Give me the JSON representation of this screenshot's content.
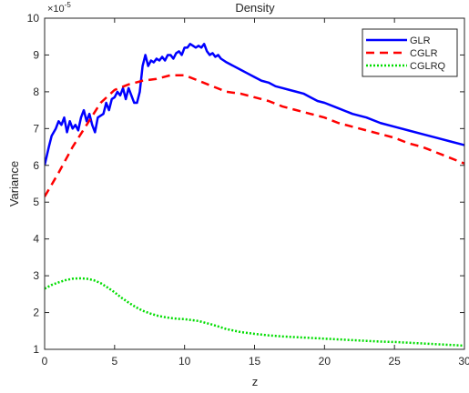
{
  "chart_data": {
    "type": "line",
    "title": "Density",
    "xlabel": "z",
    "ylabel": "Variance",
    "y_exponent_label": "×10",
    "y_exponent_power": "-5",
    "xlim": [
      0,
      30
    ],
    "ylim": [
      1,
      10
    ],
    "x_ticks": [
      0,
      5,
      10,
      15,
      20,
      25,
      30
    ],
    "x_tick_labels": [
      "0",
      "5",
      "10",
      "15",
      "20",
      "25",
      "30"
    ],
    "y_ticks": [
      1,
      2,
      3,
      4,
      5,
      6,
      7,
      8,
      9,
      10
    ],
    "y_tick_labels": [
      "1",
      "2",
      "3",
      "4",
      "5",
      "6",
      "7",
      "8",
      "9",
      "10"
    ],
    "grid": false,
    "legend_position": "top-right",
    "series": [
      {
        "name": "GLR",
        "color": "#0000ff",
        "style": "solid",
        "x": [
          0.0,
          0.3,
          0.5,
          0.8,
          1.0,
          1.2,
          1.4,
          1.6,
          1.8,
          2.0,
          2.2,
          2.4,
          2.6,
          2.8,
          3.0,
          3.2,
          3.4,
          3.6,
          3.8,
          4.0,
          4.2,
          4.4,
          4.6,
          4.8,
          5.0,
          5.2,
          5.4,
          5.6,
          5.8,
          6.0,
          6.2,
          6.4,
          6.6,
          6.8,
          7.0,
          7.2,
          7.4,
          7.6,
          7.8,
          8.0,
          8.2,
          8.4,
          8.6,
          8.8,
          9.0,
          9.2,
          9.4,
          9.6,
          9.8,
          10.0,
          10.2,
          10.4,
          10.6,
          10.8,
          11.0,
          11.2,
          11.4,
          11.6,
          11.8,
          12.0,
          12.2,
          12.4,
          12.6,
          12.8,
          13.0,
          13.5,
          14.0,
          14.5,
          15.0,
          15.5,
          16.0,
          16.5,
          17.0,
          17.5,
          18.0,
          18.5,
          19.0,
          19.5,
          20.0,
          21.0,
          22.0,
          23.0,
          24.0,
          25.0,
          26.0,
          27.0,
          28.0,
          29.0,
          30.0
        ],
        "values": [
          6.0,
          6.5,
          6.8,
          7.0,
          7.2,
          7.1,
          7.3,
          6.9,
          7.2,
          7.0,
          7.1,
          6.95,
          7.3,
          7.5,
          7.2,
          7.4,
          7.1,
          6.9,
          7.3,
          7.35,
          7.4,
          7.7,
          7.5,
          7.8,
          7.85,
          8.0,
          7.9,
          8.1,
          7.8,
          8.1,
          7.9,
          7.7,
          7.7,
          8.0,
          8.7,
          9.0,
          8.7,
          8.85,
          8.8,
          8.9,
          8.85,
          8.95,
          8.85,
          9.0,
          9.0,
          8.9,
          9.05,
          9.1,
          9.0,
          9.2,
          9.2,
          9.3,
          9.25,
          9.2,
          9.25,
          9.2,
          9.3,
          9.1,
          9.0,
          9.05,
          8.95,
          9.0,
          8.9,
          8.85,
          8.8,
          8.7,
          8.6,
          8.5,
          8.4,
          8.3,
          8.25,
          8.15,
          8.1,
          8.05,
          8.0,
          7.95,
          7.85,
          7.75,
          7.7,
          7.55,
          7.4,
          7.3,
          7.15,
          7.05,
          6.95,
          6.85,
          6.75,
          6.65,
          6.55
        ]
      },
      {
        "name": "CGLR",
        "color": "#ff0000",
        "style": "dashed",
        "x": [
          0,
          1,
          2,
          3,
          4,
          5,
          6,
          7,
          8,
          9,
          10,
          11,
          12,
          13,
          14,
          15,
          16,
          17,
          18,
          19,
          20,
          21,
          22,
          23,
          24,
          25,
          26,
          27,
          28,
          29,
          30
        ],
        "values": [
          5.15,
          5.8,
          6.5,
          7.1,
          7.7,
          8.05,
          8.2,
          8.3,
          8.35,
          8.45,
          8.45,
          8.3,
          8.15,
          8.0,
          7.95,
          7.85,
          7.75,
          7.6,
          7.5,
          7.4,
          7.3,
          7.15,
          7.05,
          6.95,
          6.85,
          6.75,
          6.6,
          6.5,
          6.35,
          6.2,
          6.05
        ]
      },
      {
        "name": "CGLRQ",
        "color": "#00dd00",
        "style": "dotted",
        "x": [
          0,
          0.5,
          1,
          1.5,
          2,
          2.5,
          3,
          3.5,
          4,
          4.5,
          5,
          5.5,
          6,
          6.5,
          7,
          7.5,
          8,
          8.5,
          9,
          9.5,
          10,
          11,
          12,
          13,
          14,
          15,
          16,
          17,
          18,
          19,
          20,
          21,
          22,
          23,
          24,
          25,
          26,
          27,
          28,
          29,
          30
        ],
        "values": [
          2.65,
          2.75,
          2.82,
          2.88,
          2.92,
          2.93,
          2.92,
          2.88,
          2.8,
          2.68,
          2.55,
          2.4,
          2.27,
          2.15,
          2.05,
          1.98,
          1.92,
          1.88,
          1.85,
          1.83,
          1.82,
          1.77,
          1.67,
          1.55,
          1.47,
          1.42,
          1.38,
          1.35,
          1.33,
          1.31,
          1.29,
          1.27,
          1.25,
          1.23,
          1.21,
          1.2,
          1.18,
          1.16,
          1.14,
          1.12,
          1.1
        ]
      }
    ]
  }
}
